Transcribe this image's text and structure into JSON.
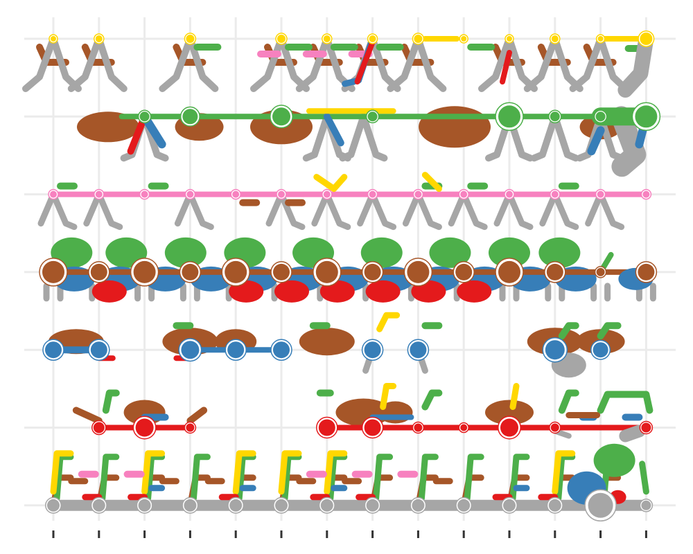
{
  "chart_data": {
    "type": "other",
    "description_free": true,
    "x": [
      1,
      2,
      3,
      4,
      5,
      6,
      7,
      8,
      9,
      10,
      11,
      12,
      13,
      14
    ],
    "rows": [
      1,
      2,
      3,
      4,
      5,
      6,
      7
    ],
    "grid": true,
    "legend": "none",
    "series_colors": {
      "gray": "#A6A6A6",
      "brown": "#A65628",
      "red": "#E41A1C",
      "blue": "#377EB8",
      "green": "#4DAF4A",
      "pink": "#F781BF",
      "yellow": "#FFD700"
    },
    "row_colors": [
      "#FFD700",
      "#4DAF4A",
      "#F781BF",
      "#A65628",
      "#377EB8",
      "#E41A1C",
      "#A6A6A6"
    ],
    "nodes": [
      {
        "row": 1,
        "cols": [
          1,
          2,
          4,
          6,
          7,
          8,
          9,
          10,
          11,
          12,
          13,
          14
        ],
        "r": [
          4,
          5,
          6,
          6,
          5,
          5,
          6,
          4,
          4,
          5,
          4,
          9
        ]
      },
      {
        "row": 2,
        "cols": [
          3,
          4,
          6,
          8,
          11,
          12,
          13,
          14
        ],
        "r": [
          7,
          11,
          13,
          7,
          16,
          7,
          7,
          16
        ]
      },
      {
        "row": 3,
        "cols": [
          1,
          2,
          3,
          4,
          5,
          6,
          7,
          8,
          9,
          10,
          11,
          12,
          13,
          14
        ],
        "r": [
          5,
          5,
          5,
          5,
          5,
          5,
          5,
          5,
          5,
          5,
          5,
          5,
          5,
          5
        ]
      },
      {
        "row": 4,
        "cols": [
          1,
          2,
          3,
          4,
          5,
          6,
          7,
          8,
          9,
          10,
          11,
          12,
          13,
          14
        ],
        "r": [
          16,
          12,
          16,
          12,
          16,
          12,
          16,
          12,
          16,
          12,
          16,
          12,
          6,
          12
        ]
      },
      {
        "row": 5,
        "cols": [
          1,
          2,
          4,
          5,
          6,
          8,
          9,
          12,
          13
        ],
        "r": [
          12,
          12,
          13,
          12,
          12,
          12,
          12,
          14,
          11
        ]
      },
      {
        "row": 6,
        "cols": [
          2,
          3,
          4,
          7,
          8,
          9,
          10,
          11,
          12,
          14
        ],
        "r": [
          8,
          13,
          6,
          12,
          12,
          6,
          5,
          13,
          6,
          7
        ]
      },
      {
        "row": 7,
        "cols": [
          1,
          2,
          3,
          4,
          5,
          6,
          7,
          8,
          9,
          10,
          11,
          12,
          13,
          14
        ],
        "r": [
          9,
          9,
          9,
          9,
          9,
          9,
          9,
          9,
          9,
          9,
          9,
          9,
          18,
          7
        ]
      }
    ]
  }
}
